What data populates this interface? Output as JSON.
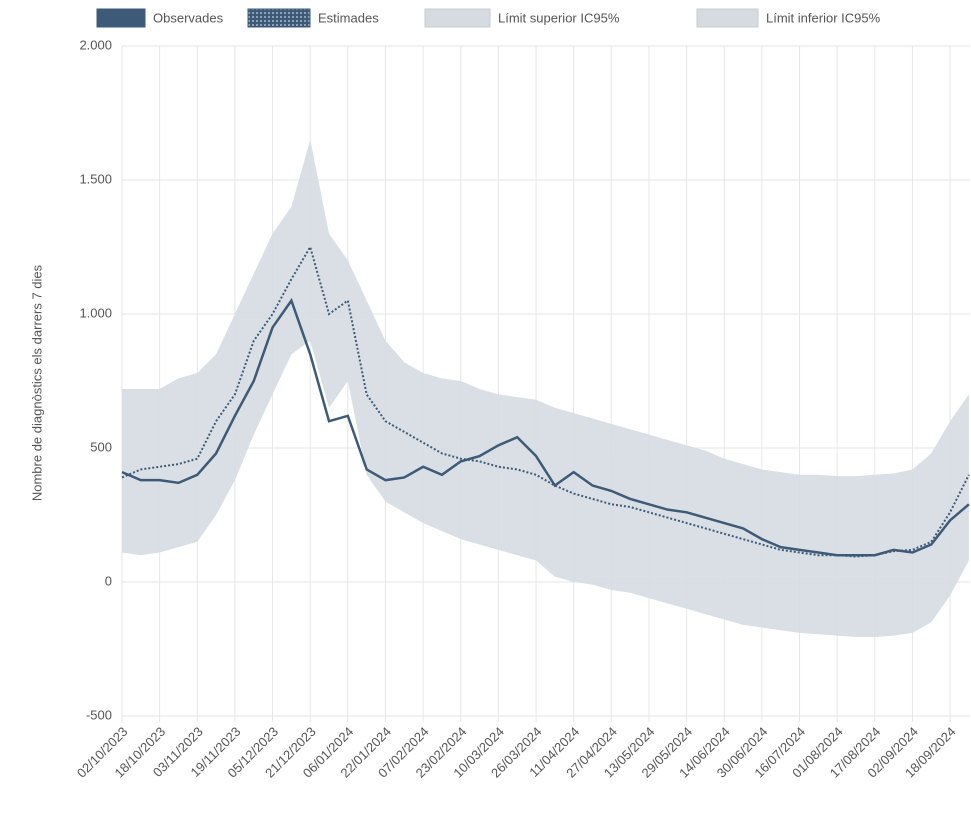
{
  "chart_data": {
    "type": "line",
    "ylabel": "Nombre de diagnòstics els darrers 7 dies",
    "categories": [
      "02/10/2023",
      null,
      "18/10/2023",
      null,
      "03/11/2023",
      null,
      "19/11/2023",
      null,
      "05/12/2023",
      null,
      "21/12/2023",
      null,
      "06/01/2024",
      null,
      "22/01/2024",
      null,
      "07/02/2024",
      null,
      "23/02/2024",
      null,
      "10/03/2024",
      null,
      "26/03/2024",
      null,
      "11/04/2024",
      null,
      "27/04/2024",
      null,
      "13/05/2024",
      null,
      "29/05/2024",
      null,
      "14/06/2024",
      null,
      "30/06/2024",
      null,
      "16/07/2024",
      null,
      "01/08/2024",
      null,
      "17/08/2024",
      null,
      "02/09/2024",
      null,
      "18/09/2024",
      null
    ],
    "series": [
      {
        "name": "Observades",
        "color": "#3d5a78",
        "style": "solid",
        "values": [
          410,
          380,
          380,
          370,
          400,
          480,
          620,
          750,
          950,
          1050,
          850,
          600,
          620,
          420,
          380,
          390,
          430,
          400,
          450,
          470,
          510,
          540,
          470,
          360,
          410,
          360,
          340,
          310,
          290,
          270,
          260,
          240,
          220,
          200,
          160,
          130,
          120,
          110,
          100,
          100,
          100,
          120,
          110,
          140,
          230,
          290
        ]
      },
      {
        "name": "Estimades",
        "color": "#3d5a78",
        "style": "dotted",
        "values": [
          390,
          420,
          430,
          440,
          460,
          600,
          700,
          900,
          1000,
          1130,
          1250,
          1000,
          1050,
          700,
          600,
          560,
          520,
          480,
          460,
          450,
          430,
          420,
          400,
          360,
          330,
          310,
          290,
          280,
          260,
          240,
          220,
          200,
          180,
          160,
          140,
          120,
          110,
          100,
          100,
          95,
          100,
          115,
          120,
          150,
          260,
          400
        ]
      },
      {
        "name": "Límit superior IC95%",
        "color": "#d5dbe1",
        "style": "band",
        "values": [
          720,
          720,
          720,
          760,
          780,
          850,
          1000,
          1150,
          1300,
          1400,
          1650,
          1300,
          1200,
          1050,
          900,
          820,
          780,
          760,
          750,
          720,
          700,
          690,
          680,
          650,
          630,
          610,
          590,
          570,
          550,
          530,
          510,
          490,
          460,
          440,
          420,
          410,
          400,
          400,
          395,
          395,
          400,
          405,
          420,
          480,
          600,
          700
        ]
      },
      {
        "name": "Límit inferior IC95%",
        "color": "#d5dbe1",
        "style": "band",
        "values": [
          110,
          100,
          110,
          130,
          150,
          250,
          380,
          550,
          700,
          850,
          900,
          650,
          750,
          400,
          300,
          260,
          220,
          190,
          160,
          140,
          120,
          100,
          80,
          20,
          0,
          -10,
          -30,
          -40,
          -60,
          -80,
          -100,
          -120,
          -140,
          -160,
          -170,
          -180,
          -190,
          -195,
          -200,
          -205,
          -205,
          -200,
          -190,
          -150,
          -50,
          80
        ]
      }
    ],
    "ylim": [
      -500,
      2000
    ],
    "yticks": [
      {
        "value": -500,
        "label": "-500"
      },
      0,
      500,
      {
        "value": 1000,
        "label": "1.000"
      },
      {
        "value": 1500,
        "label": "1.500"
      },
      {
        "value": 2000,
        "label": "2.000"
      }
    ],
    "grid": true,
    "legend": "top"
  }
}
